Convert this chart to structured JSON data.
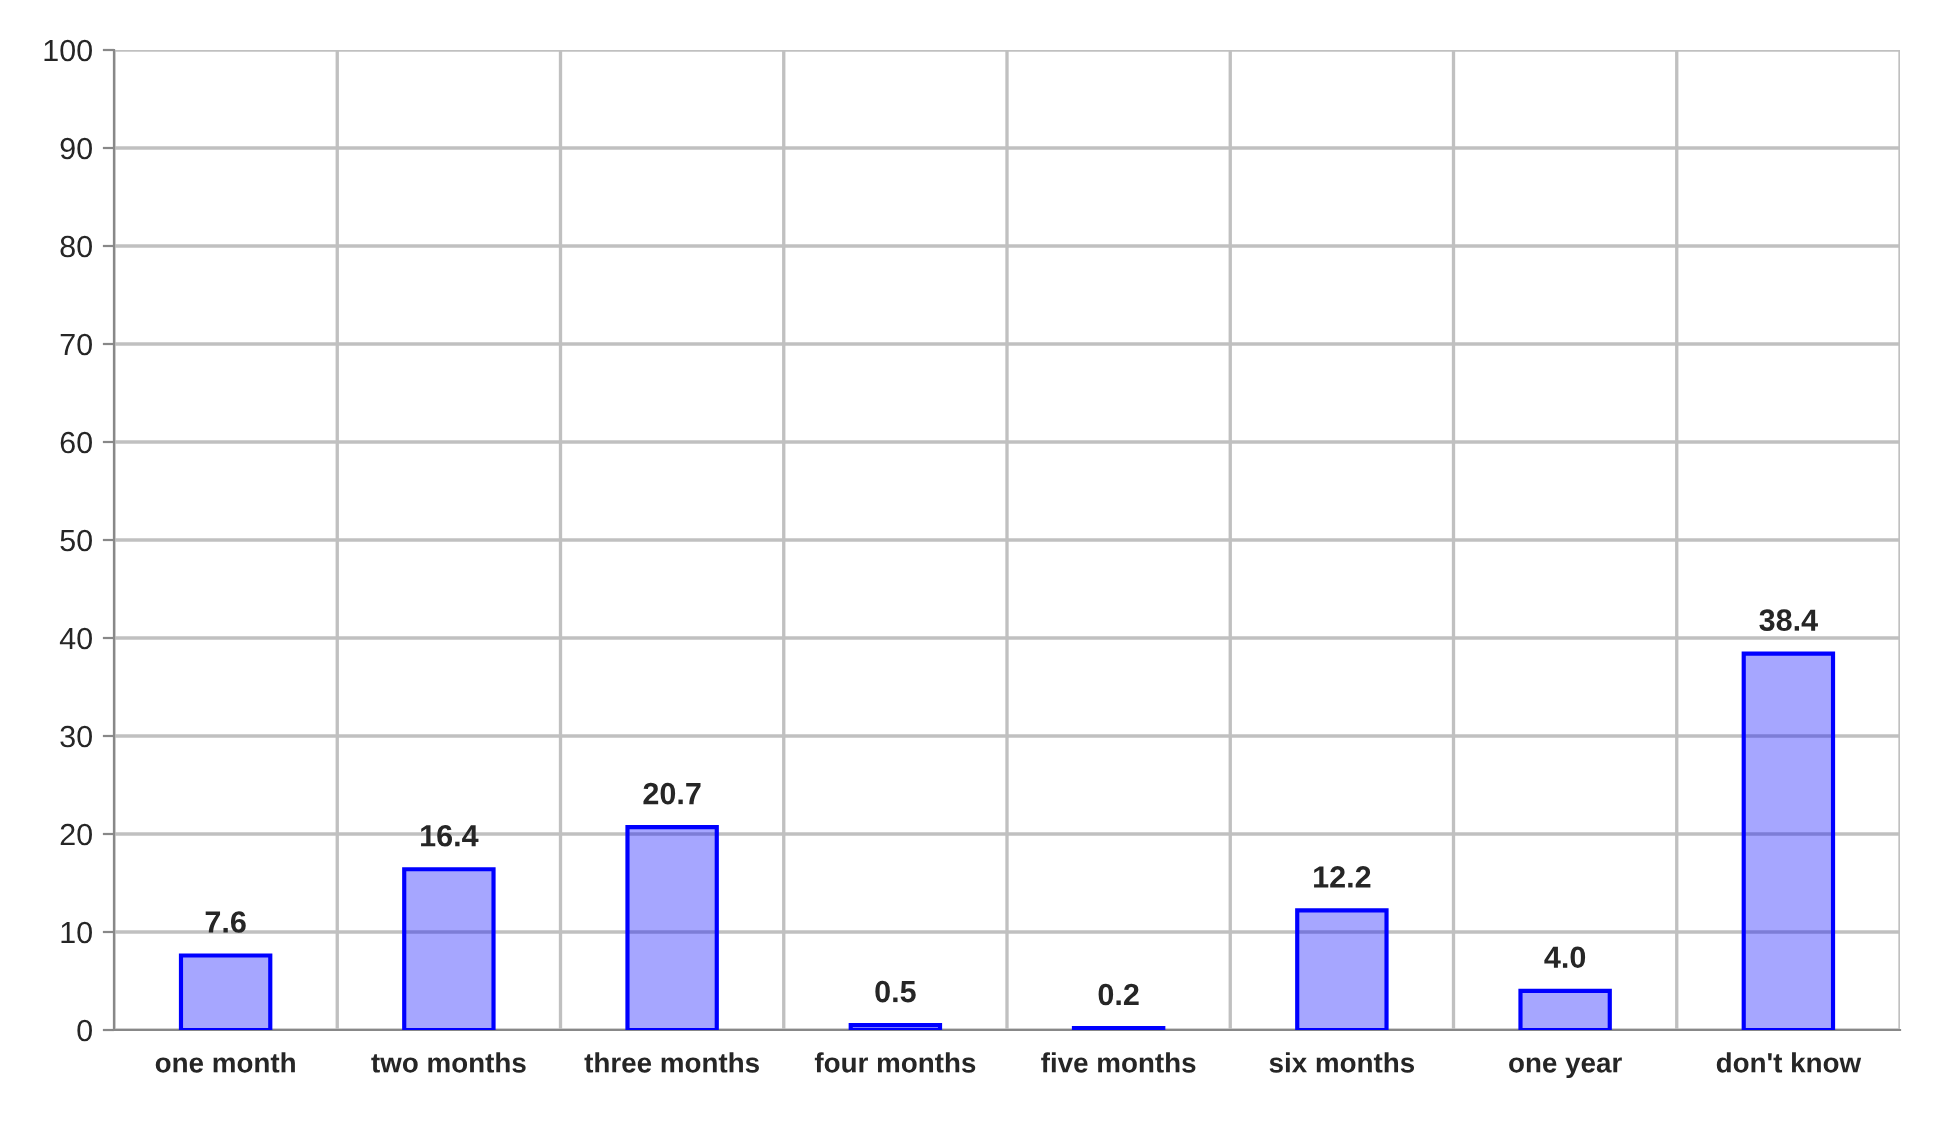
{
  "chart_data": {
    "type": "bar",
    "categories": [
      "one month",
      "two months",
      "three months",
      "four months",
      "five months",
      "six months",
      "one year",
      "don't know"
    ],
    "values": [
      7.6,
      16.4,
      20.7,
      0.5,
      0.2,
      12.2,
      4.0,
      38.4
    ],
    "value_labels": [
      "7.6",
      "16.4",
      "20.7",
      "0.5",
      "0.2",
      "12.2",
      "4.0",
      "38.4"
    ],
    "color": "#0000ff",
    "ylim": [
      0,
      100
    ],
    "yticks": [
      0,
      10,
      20,
      30,
      40,
      50,
      60,
      70,
      80,
      90,
      100
    ],
    "grid": true,
    "legend": false
  }
}
